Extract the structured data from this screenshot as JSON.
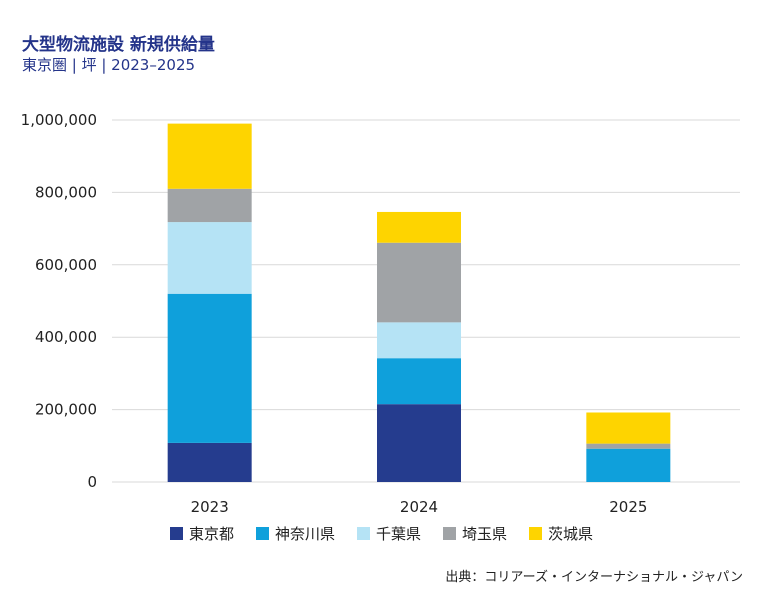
{
  "title": "大型物流施設 新規供給量",
  "subtitle": "東京圏 | 坪 | 2023–2025",
  "source": "出典：コリアーズ・インターナショナル・ジャパン",
  "chart_data": {
    "type": "bar",
    "stacked": true,
    "categories": [
      "2023",
      "2024",
      "2025"
    ],
    "series": [
      {
        "name": "東京都",
        "color": "#253c8e",
        "values": [
          108000,
          215000,
          0
        ]
      },
      {
        "name": "神奈川県",
        "color": "#0fa0db",
        "values": [
          412000,
          127000,
          92000
        ]
      },
      {
        "name": "千葉県",
        "color": "#b5e3f5",
        "values": [
          198000,
          99000,
          0
        ]
      },
      {
        "name": "埼玉県",
        "color": "#a0a3a6",
        "values": [
          92000,
          220000,
          14000
        ]
      },
      {
        "name": "茨城県",
        "color": "#fed400",
        "values": [
          180000,
          85000,
          86000
        ]
      }
    ],
    "yticks": [
      "0",
      "200,000",
      "400,000",
      "600,000",
      "800,000",
      "1,000,000"
    ],
    "ylim": [
      0,
      1000000
    ],
    "grid": true,
    "legend": "bottom"
  }
}
